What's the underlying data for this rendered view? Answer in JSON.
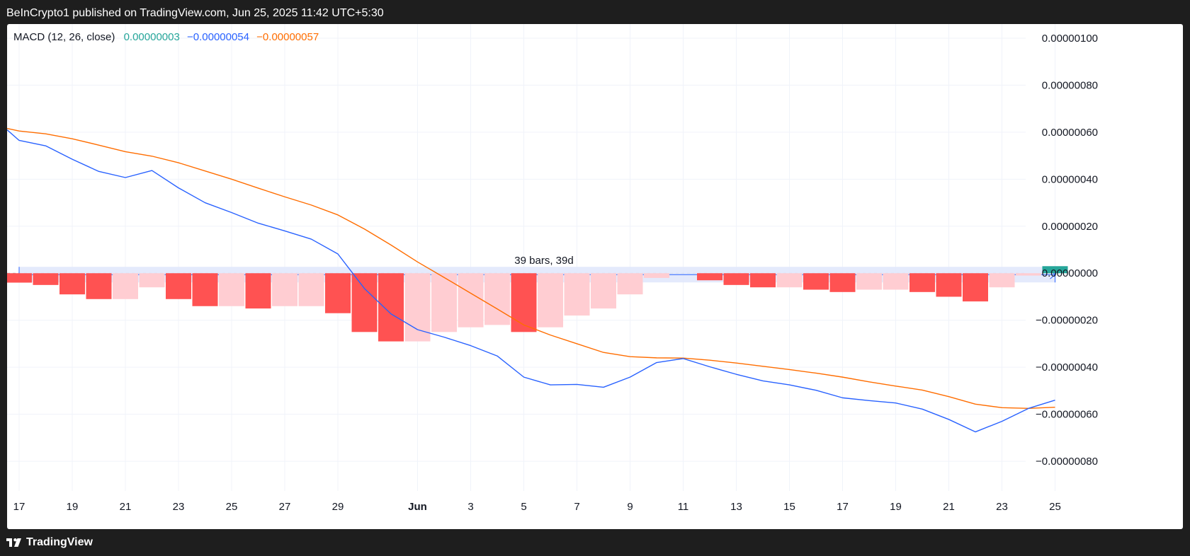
{
  "header": {
    "publisher_line": "BeInCrypto1 published on TradingView.com, Jun 25, 2025 11:42 UTC+5:30"
  },
  "legend": {
    "name": "MACD (12, 26, close)",
    "histogram_value": "0.00000003",
    "macd_value": "−0.00000054",
    "signal_value": "−0.00000057"
  },
  "footer": {
    "brand": "TradingView",
    "logo_icon": "tradingview-logo-icon"
  },
  "range_measure": {
    "label": "39 bars, 39d"
  },
  "colors": {
    "macd": "#2962ff",
    "signal": "#ff6d00",
    "hist_neg_strong": "#ff5252",
    "hist_neg_weak": "#ffcdd2",
    "hist_pos": "#26a69a",
    "legend_hist": "#26a69a",
    "range_fill": "#dfe6fb"
  },
  "chart_data": {
    "type": "line",
    "title": "MACD (12, 26, close)",
    "x_tick_labels": [
      "17",
      "19",
      "21",
      "23",
      "25",
      "27",
      "29",
      "Jun",
      "3",
      "5",
      "7",
      "9",
      "11",
      "13",
      "15",
      "17",
      "19",
      "21",
      "23",
      "25"
    ],
    "y_tick_labels": [
      "0.00000100",
      "0.00000080",
      "0.00000060",
      "0.00000040",
      "0.00000020",
      "0.00000000",
      "−0.00000020",
      "−0.00000040",
      "−0.00000060",
      "−0.00000080"
    ],
    "y_ticks": [
      1e-06,
      8e-07,
      6e-07,
      4e-07,
      2e-07,
      0,
      -2e-07,
      -4e-07,
      -6e-07,
      -8e-07
    ],
    "ylim": [
      -8.9e-07,
      1.06e-06
    ],
    "x": [
      "2025-05-17",
      "2025-05-18",
      "2025-05-19",
      "2025-05-20",
      "2025-05-21",
      "2025-05-22",
      "2025-05-23",
      "2025-05-24",
      "2025-05-25",
      "2025-05-26",
      "2025-05-27",
      "2025-05-28",
      "2025-05-29",
      "2025-05-30",
      "2025-05-31",
      "2025-06-01",
      "2025-06-02",
      "2025-06-03",
      "2025-06-04",
      "2025-06-05",
      "2025-06-06",
      "2025-06-07",
      "2025-06-08",
      "2025-06-09",
      "2025-06-10",
      "2025-06-11",
      "2025-06-12",
      "2025-06-13",
      "2025-06-14",
      "2025-06-15",
      "2025-06-16",
      "2025-06-17",
      "2025-06-18",
      "2025-06-19",
      "2025-06-20",
      "2025-06-21",
      "2025-06-22",
      "2025-06-23",
      "2025-06-24",
      "2025-06-25"
    ],
    "series": [
      {
        "name": "MACD",
        "values": [
          5.65e-07,
          5.42e-07,
          4.85e-07,
          4.33e-07,
          4.07e-07,
          4.37e-07,
          3.63e-07,
          3e-07,
          2.58e-07,
          2.13e-07,
          1.8e-07,
          1.45e-07,
          8.2e-08,
          -6.5e-08,
          -1.73e-07,
          -2.4e-07,
          -2.72e-07,
          -3.08e-07,
          -3.52e-07,
          -4.42e-07,
          -4.75e-07,
          -4.73e-07,
          -4.85e-07,
          -4.42e-07,
          -3.8e-07,
          -3.63e-07,
          -3.98e-07,
          -4.3e-07,
          -4.58e-07,
          -4.75e-07,
          -4.98e-07,
          -5.3e-07,
          -5.42e-07,
          -5.52e-07,
          -5.78e-07,
          -6.22e-07,
          -6.75e-07,
          -6.3e-07,
          -5.75e-07,
          -5.4e-07
        ]
      },
      {
        "name": "Signal",
        "values": [
          6.05e-07,
          5.93e-07,
          5.72e-07,
          5.45e-07,
          5.17e-07,
          4.98e-07,
          4.7e-07,
          4.35e-07,
          4e-07,
          3.62e-07,
          3.25e-07,
          2.9e-07,
          2.48e-07,
          1.88e-07,
          1.2e-07,
          4.8e-08,
          -1.8e-08,
          -8.5e-08,
          -1.52e-07,
          -2.2e-07,
          -2.63e-07,
          -3e-07,
          -3.37e-07,
          -3.55e-07,
          -3.6e-07,
          -3.61e-07,
          -3.7e-07,
          -3.82e-07,
          -3.96e-07,
          -4.1e-07,
          -4.25e-07,
          -4.42e-07,
          -4.62e-07,
          -4.8e-07,
          -4.97e-07,
          -5.25e-07,
          -5.57e-07,
          -5.72e-07,
          -5.75e-07,
          -5.7e-07
        ]
      },
      {
        "name": "Histogram",
        "type": "bar",
        "values": [
          -4e-08,
          -5e-08,
          -9e-08,
          -1.1e-07,
          -1.1e-07,
          -6e-08,
          -1.1e-07,
          -1.4e-07,
          -1.4e-07,
          -1.5e-07,
          -1.4e-07,
          -1.4e-07,
          -1.7e-07,
          -2.5e-07,
          -2.9e-07,
          -2.9e-07,
          -2.5e-07,
          -2.3e-07,
          -2.2e-07,
          -2.5e-07,
          -2.3e-07,
          -1.8e-07,
          -1.5e-07,
          -9e-08,
          -2e-08,
          0,
          -3e-08,
          -5e-08,
          -6e-08,
          -6e-08,
          -7e-08,
          -8e-08,
          -7e-08,
          -7e-08,
          -8e-08,
          -1e-07,
          -1.2e-07,
          -6e-08,
          -1e-08,
          3e-08
        ]
      }
    ],
    "grid": true,
    "legend": "top-left"
  }
}
